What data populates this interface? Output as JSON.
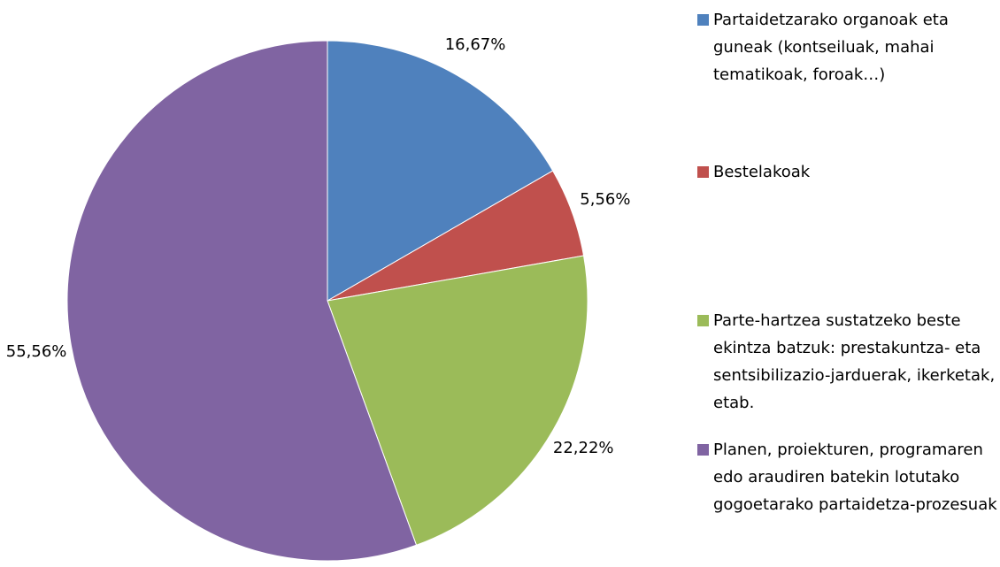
{
  "chart_data": {
    "type": "pie",
    "categories": [
      "Partaidetzarako organoak eta guneak (kontseiluak, mahai tematikoak, foroak…)",
      "Bestelakoak",
      "Parte-hartzea sustatzeko beste ekintza batzuk: prestakuntza- eta sentsibilizazio-jarduerak, ikerketak, etab.",
      "Planen, proiekturen, programaren edo araudiren batekin lotutako gogoetarako partaidetza-prozesuak"
    ],
    "values": [
      16.67,
      5.56,
      22.22,
      55.56
    ],
    "value_labels": [
      "16,67%",
      "5,56%",
      "22,22%",
      "55,56%"
    ],
    "colors": [
      "#4f81bd",
      "#c0504d",
      "#9bbb59",
      "#8064a2"
    ]
  }
}
